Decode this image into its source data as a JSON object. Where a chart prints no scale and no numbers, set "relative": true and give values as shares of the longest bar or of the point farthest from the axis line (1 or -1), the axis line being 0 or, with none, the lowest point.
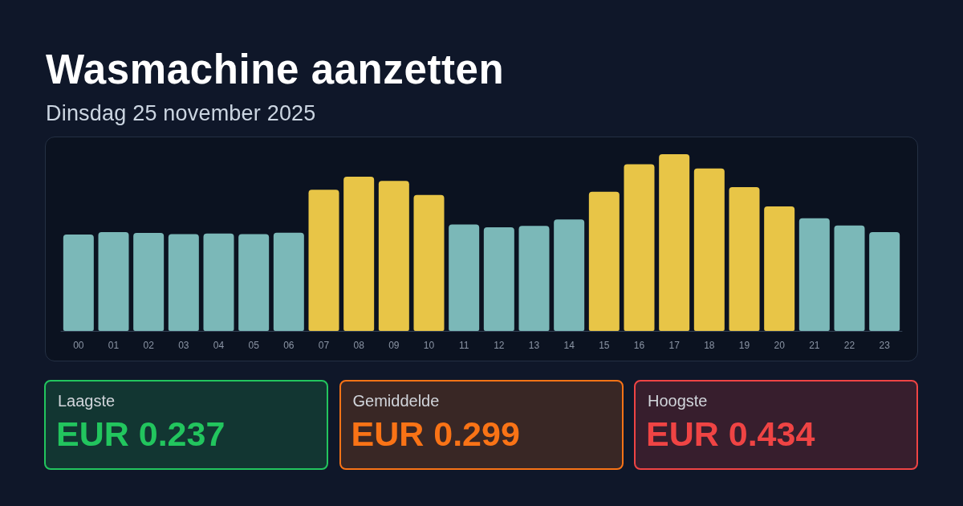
{
  "chart_data": [
    {
      "type": "bar",
      "title": "Wasmachine aanzetten",
      "subtitle": "Dinsdag 25 november 2025",
      "relative": true,
      "categories": [
        "00",
        "01",
        "02",
        "03",
        "04",
        "05",
        "06",
        "07",
        "08",
        "09",
        "10",
        "11",
        "12",
        "13",
        "14",
        "15",
        "16",
        "17",
        "18",
        "19",
        "20",
        "21",
        "22",
        "23"
      ],
      "values": [
        0.546,
        0.559,
        0.554,
        0.548,
        0.551,
        0.548,
        0.556,
        0.799,
        0.873,
        0.849,
        0.769,
        0.602,
        0.586,
        0.594,
        0.631,
        0.787,
        0.943,
        1,
        0.919,
        0.814,
        0.705,
        0.637,
        0.597,
        0.559
      ],
      "colors": [
        "#7bb8b8",
        "#7bb8b8",
        "#7bb8b8",
        "#7bb8b8",
        "#7bb8b8",
        "#7bb8b8",
        "#7bb8b8",
        "#e8c547",
        "#e8c547",
        "#e8c547",
        "#e8c547",
        "#7bb8b8",
        "#7bb8b8",
        "#7bb8b8",
        "#7bb8b8",
        "#e8c547",
        "#e8c547",
        "#e8c547",
        "#e8c547",
        "#e8c547",
        "#e8c547",
        "#7bb8b8",
        "#7bb8b8",
        "#7bb8b8"
      ]
    },
    {
      "type": "other",
      "annotations": [
        "Laagste",
        "EUR 0.237",
        "Gemiddelde",
        "EUR 0.299",
        "Hoogste",
        "EUR 0.434"
      ],
      "colors": [
        "#22c55e",
        "#f97316",
        "#ef4444"
      ]
    }
  ]
}
